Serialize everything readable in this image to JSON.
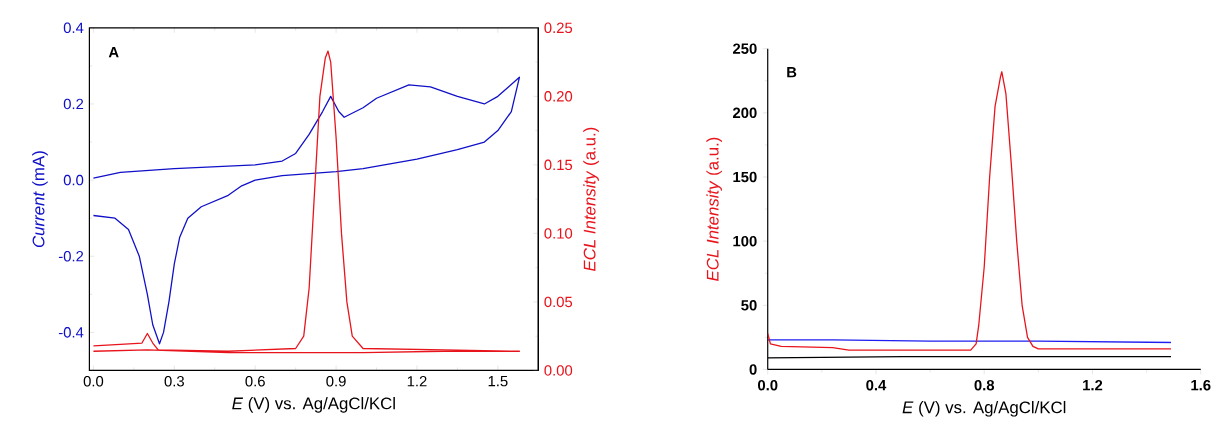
{
  "chart_data": [
    {
      "type": "line",
      "xlabel": "*E* (V) vs. Ag/AgCl/KCl",
      "ylabel": "*Current* (mA)",
      "y2label": "*ECL Intensity* (a.u.)",
      "annotations": [
        "A"
      ],
      "xlim": [
        -0.015,
        1.65
      ],
      "ylim": [
        -0.5,
        0.4
      ],
      "y2lim": [
        0,
        0.25
      ],
      "xticks": [
        {
          "value": 0,
          "label": "0.0"
        },
        0.3,
        0.6,
        0.9,
        1.2,
        1.5
      ],
      "yticks": [
        -0.4,
        -0.2,
        {
          "value": 0,
          "label": "0.0"
        },
        0.2,
        0.4
      ],
      "y2ticks": [
        {
          "value": 0,
          "label": "0.00"
        },
        0.05,
        {
          "value": 0.1,
          "label": "0.10"
        },
        0.15,
        {
          "value": 0.2,
          "label": "0.20"
        },
        0.25
      ],
      "series": [
        {
          "color": "#1010c8",
          "x": [
            0.0,
            0.1,
            0.3,
            0.6,
            0.7,
            0.75,
            0.8,
            0.85,
            0.88,
            0.91,
            0.93,
            1.0,
            1.05,
            1.17,
            1.25,
            1.35,
            1.45,
            1.5,
            1.58,
            1.55,
            1.5,
            1.45,
            1.35,
            1.2,
            1.0,
            0.9,
            0.7,
            0.6,
            0.55,
            0.5,
            0.45,
            0.4,
            0.35,
            0.32,
            0.3,
            0.28,
            0.26,
            0.245,
            0.22,
            0.2,
            0.17,
            0.13,
            0.08,
            0.0
          ],
          "values": [
            0.005,
            0.02,
            0.03,
            0.04,
            0.05,
            0.07,
            0.12,
            0.18,
            0.22,
            0.18,
            0.165,
            0.19,
            0.215,
            0.25,
            0.245,
            0.22,
            0.2,
            0.22,
            0.27,
            0.18,
            0.13,
            0.1,
            0.08,
            0.055,
            0.03,
            0.022,
            0.012,
            0.0,
            -0.015,
            -0.04,
            -0.055,
            -0.07,
            -0.1,
            -0.15,
            -0.22,
            -0.32,
            -0.4,
            -0.43,
            -0.38,
            -0.3,
            -0.2,
            -0.13,
            -0.1,
            -0.093
          ]
        },
        {
          "color": "#e8141c",
          "axis": "y2",
          "x": [
            0.0,
            0.1,
            0.18,
            0.2,
            0.22,
            0.24,
            0.5,
            0.75,
            0.78,
            0.8,
            0.82,
            0.84,
            0.86,
            0.87,
            0.88,
            0.9,
            0.92,
            0.94,
            0.96,
            1.0,
            1.3,
            1.58,
            1.3,
            1.0,
            0.5,
            0.2,
            0.0
          ],
          "values": [
            0.018,
            0.019,
            0.02,
            0.027,
            0.02,
            0.015,
            0.014,
            0.016,
            0.025,
            0.06,
            0.13,
            0.2,
            0.228,
            0.233,
            0.225,
            0.17,
            0.1,
            0.05,
            0.025,
            0.016,
            0.015,
            0.014,
            0.014,
            0.013,
            0.013,
            0.015,
            0.014
          ]
        }
      ]
    },
    {
      "type": "line",
      "xlabel": "*E* (V) vs. Ag/AgCl/KCl",
      "ylabel": "*ECL Intensity* (a.u.)",
      "annotations": [
        "B"
      ],
      "xlim": [
        0,
        1.6
      ],
      "ylim": [
        0,
        250
      ],
      "xticks": [
        {
          "value": 0,
          "label": "0.0"
        },
        0.4,
        0.8,
        1.2,
        1.6
      ],
      "yticks": [
        0,
        50,
        100,
        150,
        200,
        250
      ],
      "series": [
        {
          "color": "#1e1ef0",
          "x": [
            0.0,
            0.24,
            0.6,
            1.0,
            1.49
          ],
          "values": [
            23,
            23,
            22,
            22,
            21
          ]
        },
        {
          "color": "#000000",
          "x": [
            0.0,
            0.5,
            1.0,
            1.49
          ],
          "values": [
            9,
            10,
            10,
            10
          ]
        },
        {
          "color": "#e8141c",
          "x": [
            0.0,
            0.01,
            0.05,
            0.24,
            0.3,
            0.75,
            0.77,
            0.78,
            0.8,
            0.82,
            0.84,
            0.86,
            0.865,
            0.88,
            0.9,
            0.92,
            0.94,
            0.96,
            0.98,
            1.0,
            1.49
          ],
          "values": [
            28,
            20,
            18,
            17,
            15,
            15,
            20,
            35,
            80,
            150,
            205,
            228,
            232,
            215,
            160,
            100,
            50,
            25,
            18,
            16,
            16
          ]
        }
      ]
    }
  ]
}
